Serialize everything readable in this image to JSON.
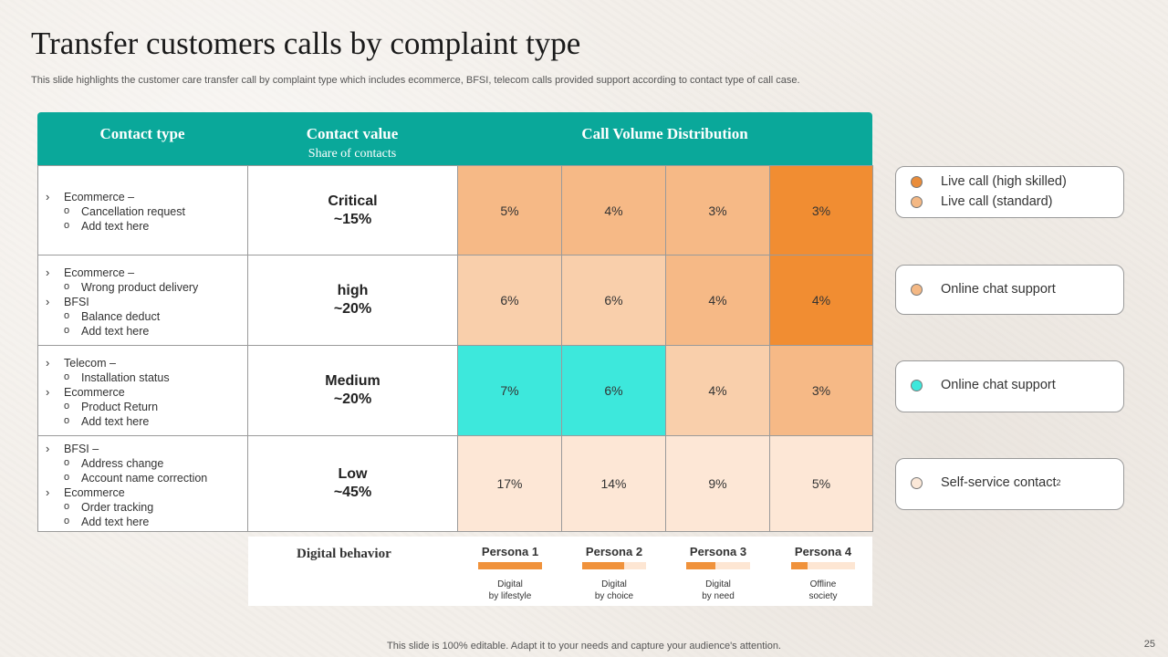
{
  "slide": {
    "title": "Transfer customers calls by complaint type",
    "subtitle": "This slide highlights the customer care transfer call by complaint type which includes ecommerce, BFSI, telecom calls provided support according to contact type of call case.",
    "footer": "This slide is 100% editable. Adapt it to your needs and capture your audience's attention.",
    "page_number": "25"
  },
  "table": {
    "headers": {
      "contact_type": "Contact type",
      "contact_value": "Contact value",
      "contact_value_sub": "Share of contacts",
      "distribution": "Call Volume Distribution"
    },
    "rows": [
      {
        "contact_lines": [
          {
            "level": 1,
            "text": "Ecommerce –"
          },
          {
            "level": 2,
            "text": "Cancellation request"
          },
          {
            "level": 2,
            "text": "Add text here"
          }
        ],
        "value_label": "Critical",
        "value_share": "~15%",
        "cells": [
          {
            "text": "5%",
            "color": "#f6b986"
          },
          {
            "text": "4%",
            "color": "#f6b986"
          },
          {
            "text": "3%",
            "color": "#f6b986"
          },
          {
            "text": "3%",
            "color": "#f18d32"
          }
        ]
      },
      {
        "contact_lines": [
          {
            "level": 1,
            "text": "Ecommerce –"
          },
          {
            "level": 2,
            "text": "Wrong product delivery"
          },
          {
            "level": 1,
            "text": "BFSI"
          },
          {
            "level": 2,
            "text": "Balance deduct"
          },
          {
            "level": 2,
            "text": "Add text here"
          }
        ],
        "value_label": "high",
        "value_share": "~20%",
        "cells": [
          {
            "text": "6%",
            "color": "#f9cfab"
          },
          {
            "text": "6%",
            "color": "#f9cfab"
          },
          {
            "text": "4%",
            "color": "#f6b986"
          },
          {
            "text": "4%",
            "color": "#f18d32"
          }
        ]
      },
      {
        "contact_lines": [
          {
            "level": 1,
            "text": "Telecom –"
          },
          {
            "level": 2,
            "text": "Installation status"
          },
          {
            "level": 1,
            "text": "Ecommerce"
          },
          {
            "level": 2,
            "text": "Product Return"
          },
          {
            "level": 2,
            "text": "Add text here"
          }
        ],
        "value_label": "Medium",
        "value_share": "~20%",
        "cells": [
          {
            "text": "7%",
            "color": "#3de8dc"
          },
          {
            "text": "6%",
            "color": "#3de8dc"
          },
          {
            "text": "4%",
            "color": "#f9cfab"
          },
          {
            "text": "3%",
            "color": "#f6b986"
          }
        ]
      },
      {
        "contact_lines": [
          {
            "level": 1,
            "text": "BFSI –"
          },
          {
            "level": 2,
            "text": "Address change"
          },
          {
            "level": 2,
            "text": "Account name correction"
          },
          {
            "level": 1,
            "text": "Ecommerce"
          },
          {
            "level": 2,
            "text": "Order tracking"
          },
          {
            "level": 2,
            "text": "Add text here"
          }
        ],
        "value_label": "Low",
        "value_share": "~45%",
        "cells": [
          {
            "text": "17%",
            "color": "#fde7d6"
          },
          {
            "text": "14%",
            "color": "#fde7d6"
          },
          {
            "text": "9%",
            "color": "#fde7d6"
          },
          {
            "text": "5%",
            "color": "#fde7d6"
          }
        ]
      }
    ]
  },
  "legend": [
    {
      "items": [
        {
          "label": "Live call (high skilled)",
          "color": "#e98c3a"
        },
        {
          "label": "Live call (standard)",
          "color": "#f4b884"
        }
      ]
    },
    {
      "items": [
        {
          "label": "Online chat support",
          "color": "#f4b884"
        }
      ]
    },
    {
      "items": [
        {
          "label": "Online chat support",
          "color": "#3de8dc"
        }
      ]
    },
    {
      "items": [
        {
          "label": "Self-service contact",
          "sup": "2",
          "color": "#fbe8d8"
        }
      ]
    }
  ],
  "digital_behavior": {
    "label": "Digital behavior",
    "personas": [
      {
        "name": "Persona 1",
        "fill_fraction": 1.0,
        "desc_line1": "Digital",
        "desc_line2": "by lifestyle"
      },
      {
        "name": "Persona 2",
        "fill_fraction": 0.65,
        "desc_line1": "Digital",
        "desc_line2": "by choice"
      },
      {
        "name": "Persona 3",
        "fill_fraction": 0.45,
        "desc_line1": "Digital",
        "desc_line2": "by need"
      },
      {
        "name": "Persona 4",
        "fill_fraction": 0.25,
        "desc_line1": "Offline",
        "desc_line2": "society"
      }
    ]
  }
}
